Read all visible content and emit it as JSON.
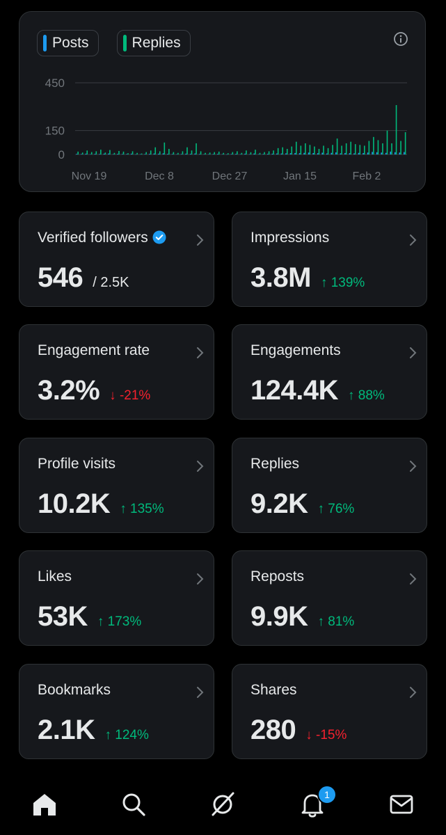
{
  "chart_card": {
    "legend": [
      {
        "label": "Posts",
        "color": "#1d9bf0"
      },
      {
        "label": "Replies",
        "color": "#00ba7c"
      }
    ],
    "info_icon": "info-icon"
  },
  "chart_data": {
    "type": "bar",
    "y_ticks": [
      "450",
      "150",
      "0"
    ],
    "y_tick_values": [
      450,
      150,
      0
    ],
    "x_tick_labels": [
      "Nov 19",
      "Dec 8",
      "Dec 27",
      "Jan 15",
      "Feb 2"
    ],
    "ylim": [
      0,
      450
    ],
    "x_range": [
      "Nov 19",
      "Feb 12"
    ],
    "grid": true,
    "series": [
      {
        "name": "Posts",
        "color": "#1d9bf0",
        "values": [
          4,
          3,
          5,
          2,
          4,
          3,
          5,
          6,
          2,
          4,
          3,
          3,
          5,
          1,
          2,
          3,
          4,
          6,
          5,
          7,
          4,
          3,
          2,
          3,
          5,
          4,
          6,
          3,
          2,
          2,
          3,
          4,
          2,
          1,
          3,
          4,
          2,
          5,
          2,
          6,
          2,
          3,
          4,
          5,
          6,
          6,
          7,
          8,
          9,
          8,
          10,
          12,
          9,
          8,
          11,
          6,
          10,
          13,
          7,
          9,
          8,
          7,
          10,
          9,
          12,
          16,
          14,
          12,
          10,
          18,
          14,
          12,
          15
        ]
      },
      {
        "name": "Replies",
        "color": "#00ba7c",
        "values": [
          18,
          12,
          25,
          15,
          20,
          30,
          12,
          28,
          10,
          22,
          18,
          8,
          20,
          10,
          6,
          15,
          25,
          45,
          20,
          75,
          35,
          15,
          10,
          20,
          45,
          25,
          70,
          20,
          10,
          12,
          15,
          18,
          10,
          8,
          15,
          20,
          10,
          25,
          14,
          30,
          10,
          15,
          20,
          25,
          40,
          45,
          35,
          50,
          80,
          55,
          70,
          60,
          50,
          35,
          55,
          40,
          60,
          100,
          55,
          70,
          80,
          65,
          60,
          55,
          85,
          110,
          90,
          70,
          150,
          70,
          310,
          85,
          140
        ]
      }
    ]
  },
  "stats": [
    {
      "title": "Verified followers",
      "value": "546",
      "sub": "/ 2.5K",
      "verified": true
    },
    {
      "title": "Impressions",
      "value": "3.8M",
      "delta": "139%",
      "direction": "up"
    },
    {
      "title": "Engagement rate",
      "value": "3.2%",
      "delta": "-21%",
      "direction": "down"
    },
    {
      "title": "Engagements",
      "value": "124.4K",
      "delta": "88%",
      "direction": "up"
    },
    {
      "title": "Profile visits",
      "value": "10.2K",
      "delta": "135%",
      "direction": "up"
    },
    {
      "title": "Replies",
      "value": "9.2K",
      "delta": "76%",
      "direction": "up"
    },
    {
      "title": "Likes",
      "value": "53K",
      "delta": "173%",
      "direction": "up"
    },
    {
      "title": "Reposts",
      "value": "9.9K",
      "delta": "81%",
      "direction": "up"
    },
    {
      "title": "Bookmarks",
      "value": "2.1K",
      "delta": "124%",
      "direction": "up"
    },
    {
      "title": "Shares",
      "value": "280",
      "delta": "-15%",
      "direction": "down"
    }
  ],
  "colors": {
    "up": "#00ba7c",
    "down": "#f4212e",
    "accent": "#1d9bf0"
  },
  "nav": {
    "items": [
      "home-icon",
      "search-icon",
      "grok-icon",
      "bell-icon",
      "mail-icon"
    ],
    "notification_count": "1"
  }
}
